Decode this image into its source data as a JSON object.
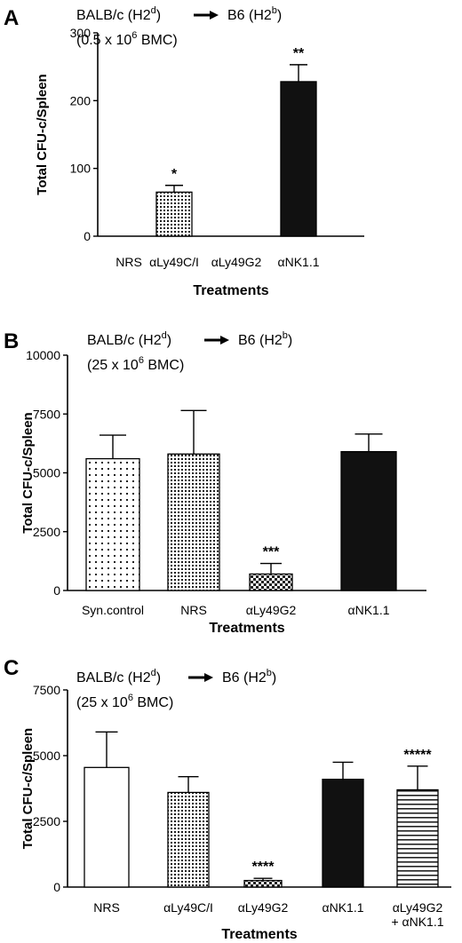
{
  "chart_data": [
    {
      "type": "bar",
      "panel": "A",
      "header": {
        "donor": "BALB/c (H2",
        "donor_sup": "d",
        "donor_close": ")",
        "recipient": "B6 (H2",
        "recipient_sup": "b",
        "recipient_close": ")",
        "dose_pre": "(0.5 x 10",
        "dose_sup": "6",
        "dose_post": " BMC)"
      },
      "ylabel": "Total CFU-c/Spleen",
      "xlabel": "Treatments",
      "ylim": [
        0,
        300
      ],
      "yticks": [
        "0",
        "100",
        "200",
        "300"
      ],
      "categories": [
        [
          "NRS"
        ],
        [
          "αLy49C/I"
        ],
        [
          "αLy49G2"
        ],
        [
          "αNK1.1"
        ]
      ],
      "values": [
        0,
        65,
        0,
        228
      ],
      "errors": [
        0,
        10,
        0,
        25
      ],
      "fills": [
        "white",
        "dots-fine",
        "white",
        "black"
      ],
      "annotations": [
        "",
        "*",
        "",
        "**"
      ]
    },
    {
      "type": "bar",
      "panel": "B",
      "header": {
        "donor": "BALB/c (H2",
        "donor_sup": "d",
        "donor_close": ")",
        "recipient": "B6 (H2",
        "recipient_sup": "b",
        "recipient_close": ")",
        "dose_pre": "(25 x 10",
        "dose_sup": "6",
        "dose_post": " BMC)"
      },
      "ylabel": "Total CFU-c/Spleen",
      "xlabel": "Treatments",
      "ylim": [
        0,
        10000
      ],
      "yticks": [
        "0",
        "2500",
        "5000",
        "7500",
        "10000"
      ],
      "categories": [
        [
          "Syn.control"
        ],
        [
          "NRS"
        ],
        [
          "αLy49G2"
        ],
        [
          "αNK1.1"
        ]
      ],
      "values": [
        5600,
        5800,
        700,
        5900
      ],
      "errors": [
        1000,
        1850,
        450,
        750
      ],
      "fills": [
        "dots-sparse",
        "dots-fine",
        "checker",
        "black"
      ],
      "annotations": [
        "",
        "",
        "***",
        ""
      ]
    },
    {
      "type": "bar",
      "panel": "C",
      "header": {
        "donor": "BALB/c (H2",
        "donor_sup": "d",
        "donor_close": ")",
        "recipient": "B6 (H2",
        "recipient_sup": "b",
        "recipient_close": ")",
        "dose_pre": "(25 x 10",
        "dose_sup": "6",
        "dose_post": " BMC)"
      },
      "ylabel": "Total CFU-c/Spleen",
      "xlabel": "Treatments",
      "ylim": [
        0,
        7500
      ],
      "yticks": [
        "0",
        "2500",
        "5000",
        "7500"
      ],
      "categories": [
        [
          "NRS"
        ],
        [
          "αLy49C/I"
        ],
        [
          "αLy49G2"
        ],
        [
          "αNK1.1"
        ],
        [
          "αLy49G2",
          "+ αNK1.1"
        ]
      ],
      "values": [
        4550,
        3600,
        250,
        4100,
        3700
      ],
      "errors": [
        1350,
        600,
        80,
        650,
        900
      ],
      "fills": [
        "white",
        "dots-fine",
        "checker",
        "black",
        "hstripes"
      ],
      "annotations": [
        "",
        "",
        "****",
        "",
        "*****"
      ]
    }
  ]
}
